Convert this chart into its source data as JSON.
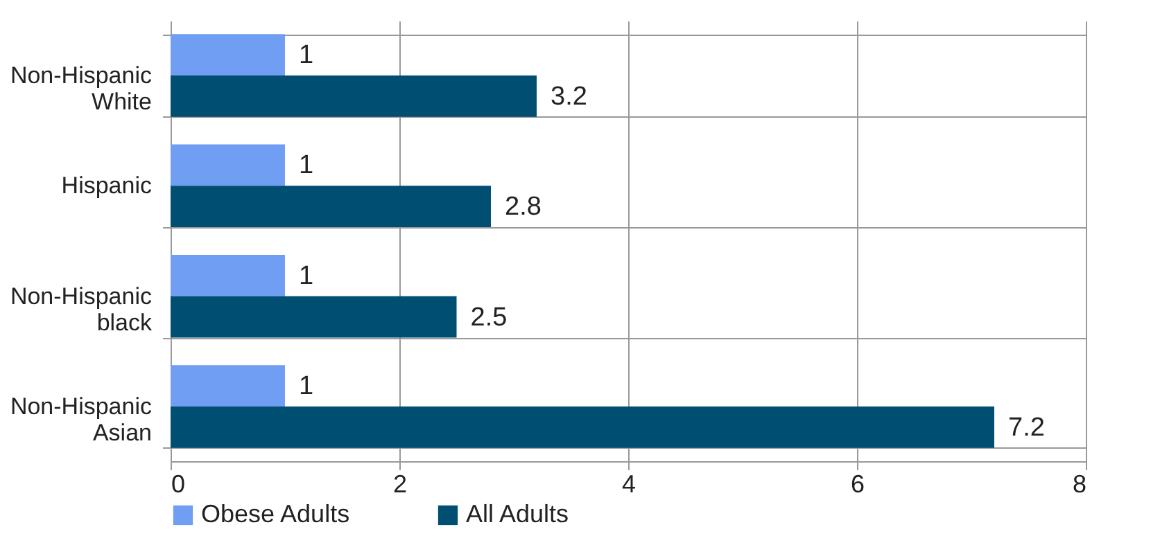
{
  "chart_data": {
    "type": "bar",
    "orientation": "horizontal",
    "categories": [
      "Non-Hispanic White",
      "Hispanic",
      "Non-Hispanic black",
      "Non-Hispanic Asian"
    ],
    "series": [
      {
        "name": "Obese Adults",
        "color": "#6f9ef2",
        "values": [
          1,
          1,
          1,
          1
        ]
      },
      {
        "name": "All Adults",
        "color": "#004f72",
        "values": [
          3.2,
          2.8,
          2.5,
          7.2
        ]
      }
    ],
    "xlim": [
      0,
      8
    ],
    "xticks": [
      0,
      2,
      4,
      6,
      8
    ],
    "grid": true,
    "legend": "bottom",
    "data_labels": true
  }
}
